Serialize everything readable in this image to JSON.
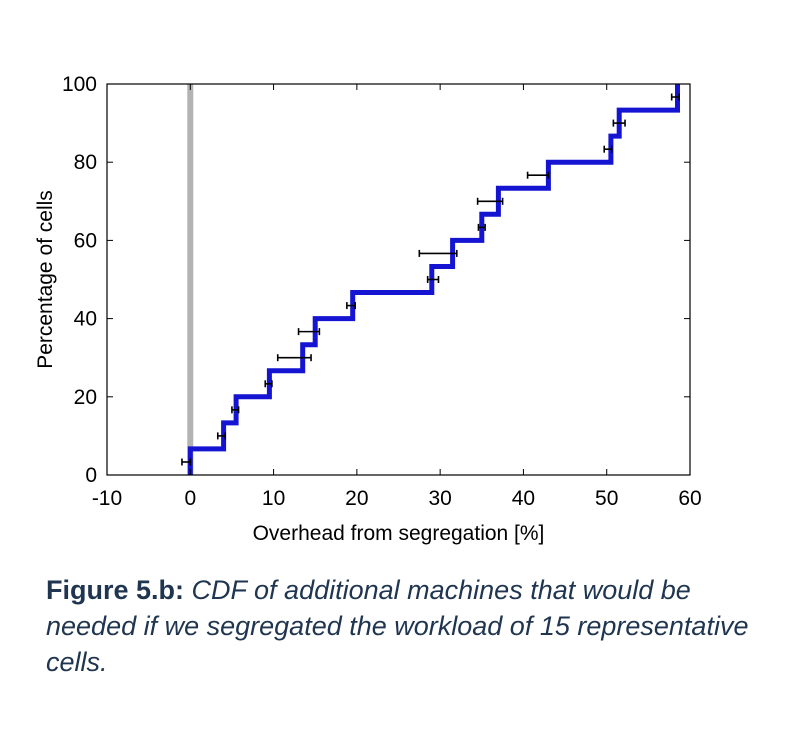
{
  "chart_data": {
    "type": "line",
    "subtype": "step-cdf",
    "xlabel": "Overhead from segregation [%]",
    "ylabel": "Percentage of cells",
    "xlim": [
      -10,
      60
    ],
    "ylim": [
      0,
      100
    ],
    "xticks": [
      -10,
      0,
      10,
      20,
      30,
      40,
      50,
      60
    ],
    "yticks": [
      0,
      20,
      40,
      60,
      80,
      100
    ],
    "grid": false,
    "reference_line": {
      "x": 0,
      "color": "#b3b3b3"
    },
    "series": [
      {
        "color": "#1414d2",
        "steps": [
          {
            "x": 0,
            "y": 6.67
          },
          {
            "x": 4,
            "y": 13.33
          },
          {
            "x": 5.5,
            "y": 20
          },
          {
            "x": 9.5,
            "y": 26.67
          },
          {
            "x": 13.5,
            "y": 33.33
          },
          {
            "x": 15,
            "y": 40
          },
          {
            "x": 19.5,
            "y": 46.67
          },
          {
            "x": 29,
            "y": 53.33
          },
          {
            "x": 31.5,
            "y": 60
          },
          {
            "x": 35,
            "y": 66.67
          },
          {
            "x": 37,
            "y": 73.33
          },
          {
            "x": 43,
            "y": 80
          },
          {
            "x": 50.5,
            "y": 86.67
          },
          {
            "x": 51.5,
            "y": 93.33
          },
          {
            "x": 58.5,
            "y": 100
          }
        ]
      }
    ],
    "error_bars": [
      {
        "y": 3.33,
        "x_low": -1,
        "x_high": 0
      },
      {
        "y": 10,
        "x_low": 3.3,
        "x_high": 4.2
      },
      {
        "y": 16.67,
        "x_low": 5,
        "x_high": 5.8
      },
      {
        "y": 23.33,
        "x_low": 9,
        "x_high": 9.8
      },
      {
        "y": 30,
        "x_low": 10.5,
        "x_high": 14.5
      },
      {
        "y": 36.67,
        "x_low": 13,
        "x_high": 15.5
      },
      {
        "y": 43.33,
        "x_low": 18.8,
        "x_high": 19.8
      },
      {
        "y": 50,
        "x_low": 28.5,
        "x_high": 29.8
      },
      {
        "y": 56.67,
        "x_low": 27.5,
        "x_high": 32
      },
      {
        "y": 63.33,
        "x_low": 34.6,
        "x_high": 35.4
      },
      {
        "y": 70,
        "x_low": 34.5,
        "x_high": 37.5
      },
      {
        "y": 76.67,
        "x_low": 40.5,
        "x_high": 43
      },
      {
        "y": 83.33,
        "x_low": 49.7,
        "x_high": 50.6
      },
      {
        "y": 90,
        "x_low": 50.8,
        "x_high": 52.2
      },
      {
        "y": 96.67,
        "x_low": 57.8,
        "x_high": 58.7
      }
    ]
  },
  "caption": {
    "label": "Figure 5.b:",
    "text": "CDF of additional machines that would be needed if we segregated the workload of 15 representative cells."
  },
  "colors": {
    "caption": "#1f3550",
    "series": "#1414d2",
    "reference": "#b3b3b3",
    "error_bar": "#000000"
  }
}
